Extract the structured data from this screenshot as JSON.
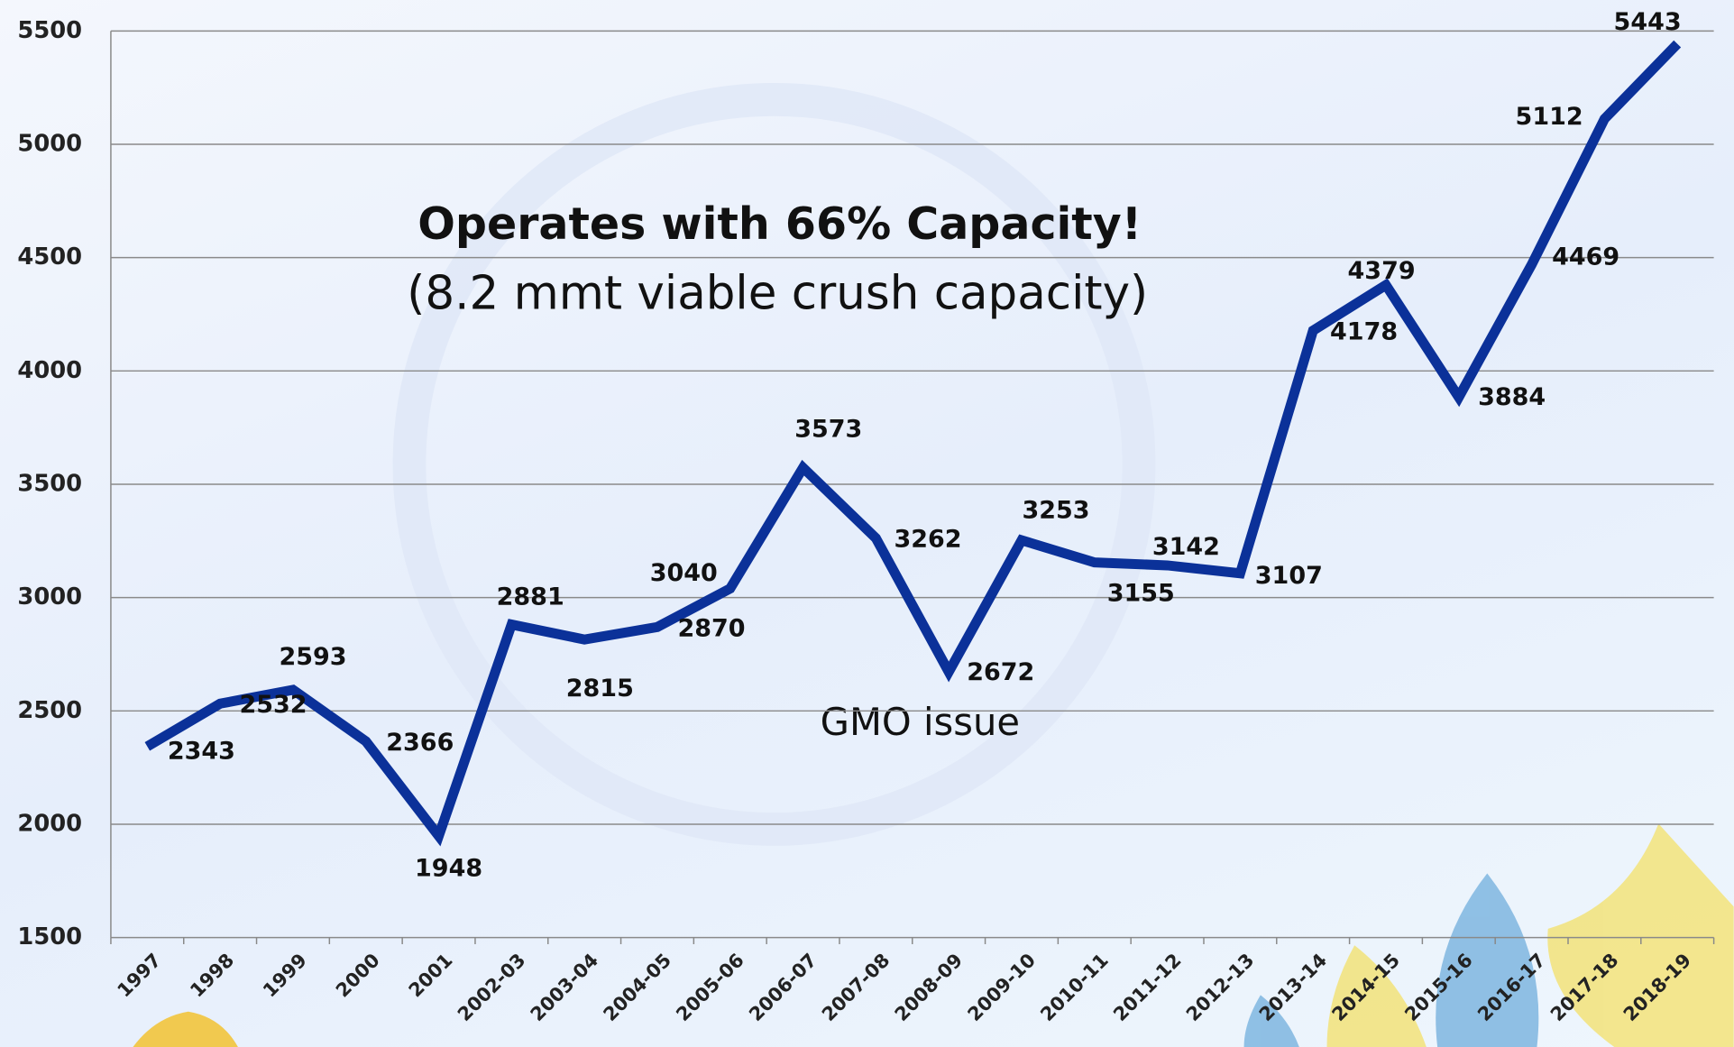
{
  "chart_data": {
    "type": "line",
    "title": "Operates with 66% Capacity!",
    "subtitle": "(8.2 mmt viable crush capacity)",
    "annotations": [
      "GMO  issue"
    ],
    "categories": [
      "1997",
      "1998",
      "1999",
      "2000",
      "2001",
      "2002-03",
      "2003-04",
      "2004-05",
      "2005-06",
      "2006-07",
      "2007-08",
      "2008-09",
      "2009-10",
      "2010-11",
      "2011-12",
      "2012-13",
      "2013-14",
      "2014-15",
      "2015-16",
      "2016-17",
      "2017-18",
      "2018-19"
    ],
    "values": [
      2343,
      2532,
      2593,
      2366,
      1948,
      2881,
      2815,
      2870,
      3040,
      3573,
      3262,
      2672,
      3253,
      3155,
      3142,
      3107,
      4178,
      4379,
      3884,
      4469,
      5112,
      5443
    ],
    "color": "#0b3199",
    "highlight_color": "#e8141c",
    "ylim": [
      1500,
      5500
    ],
    "yticks": [
      1500,
      2000,
      2500,
      3000,
      3500,
      4000,
      4500,
      5000,
      5500
    ],
    "grid": true
  }
}
